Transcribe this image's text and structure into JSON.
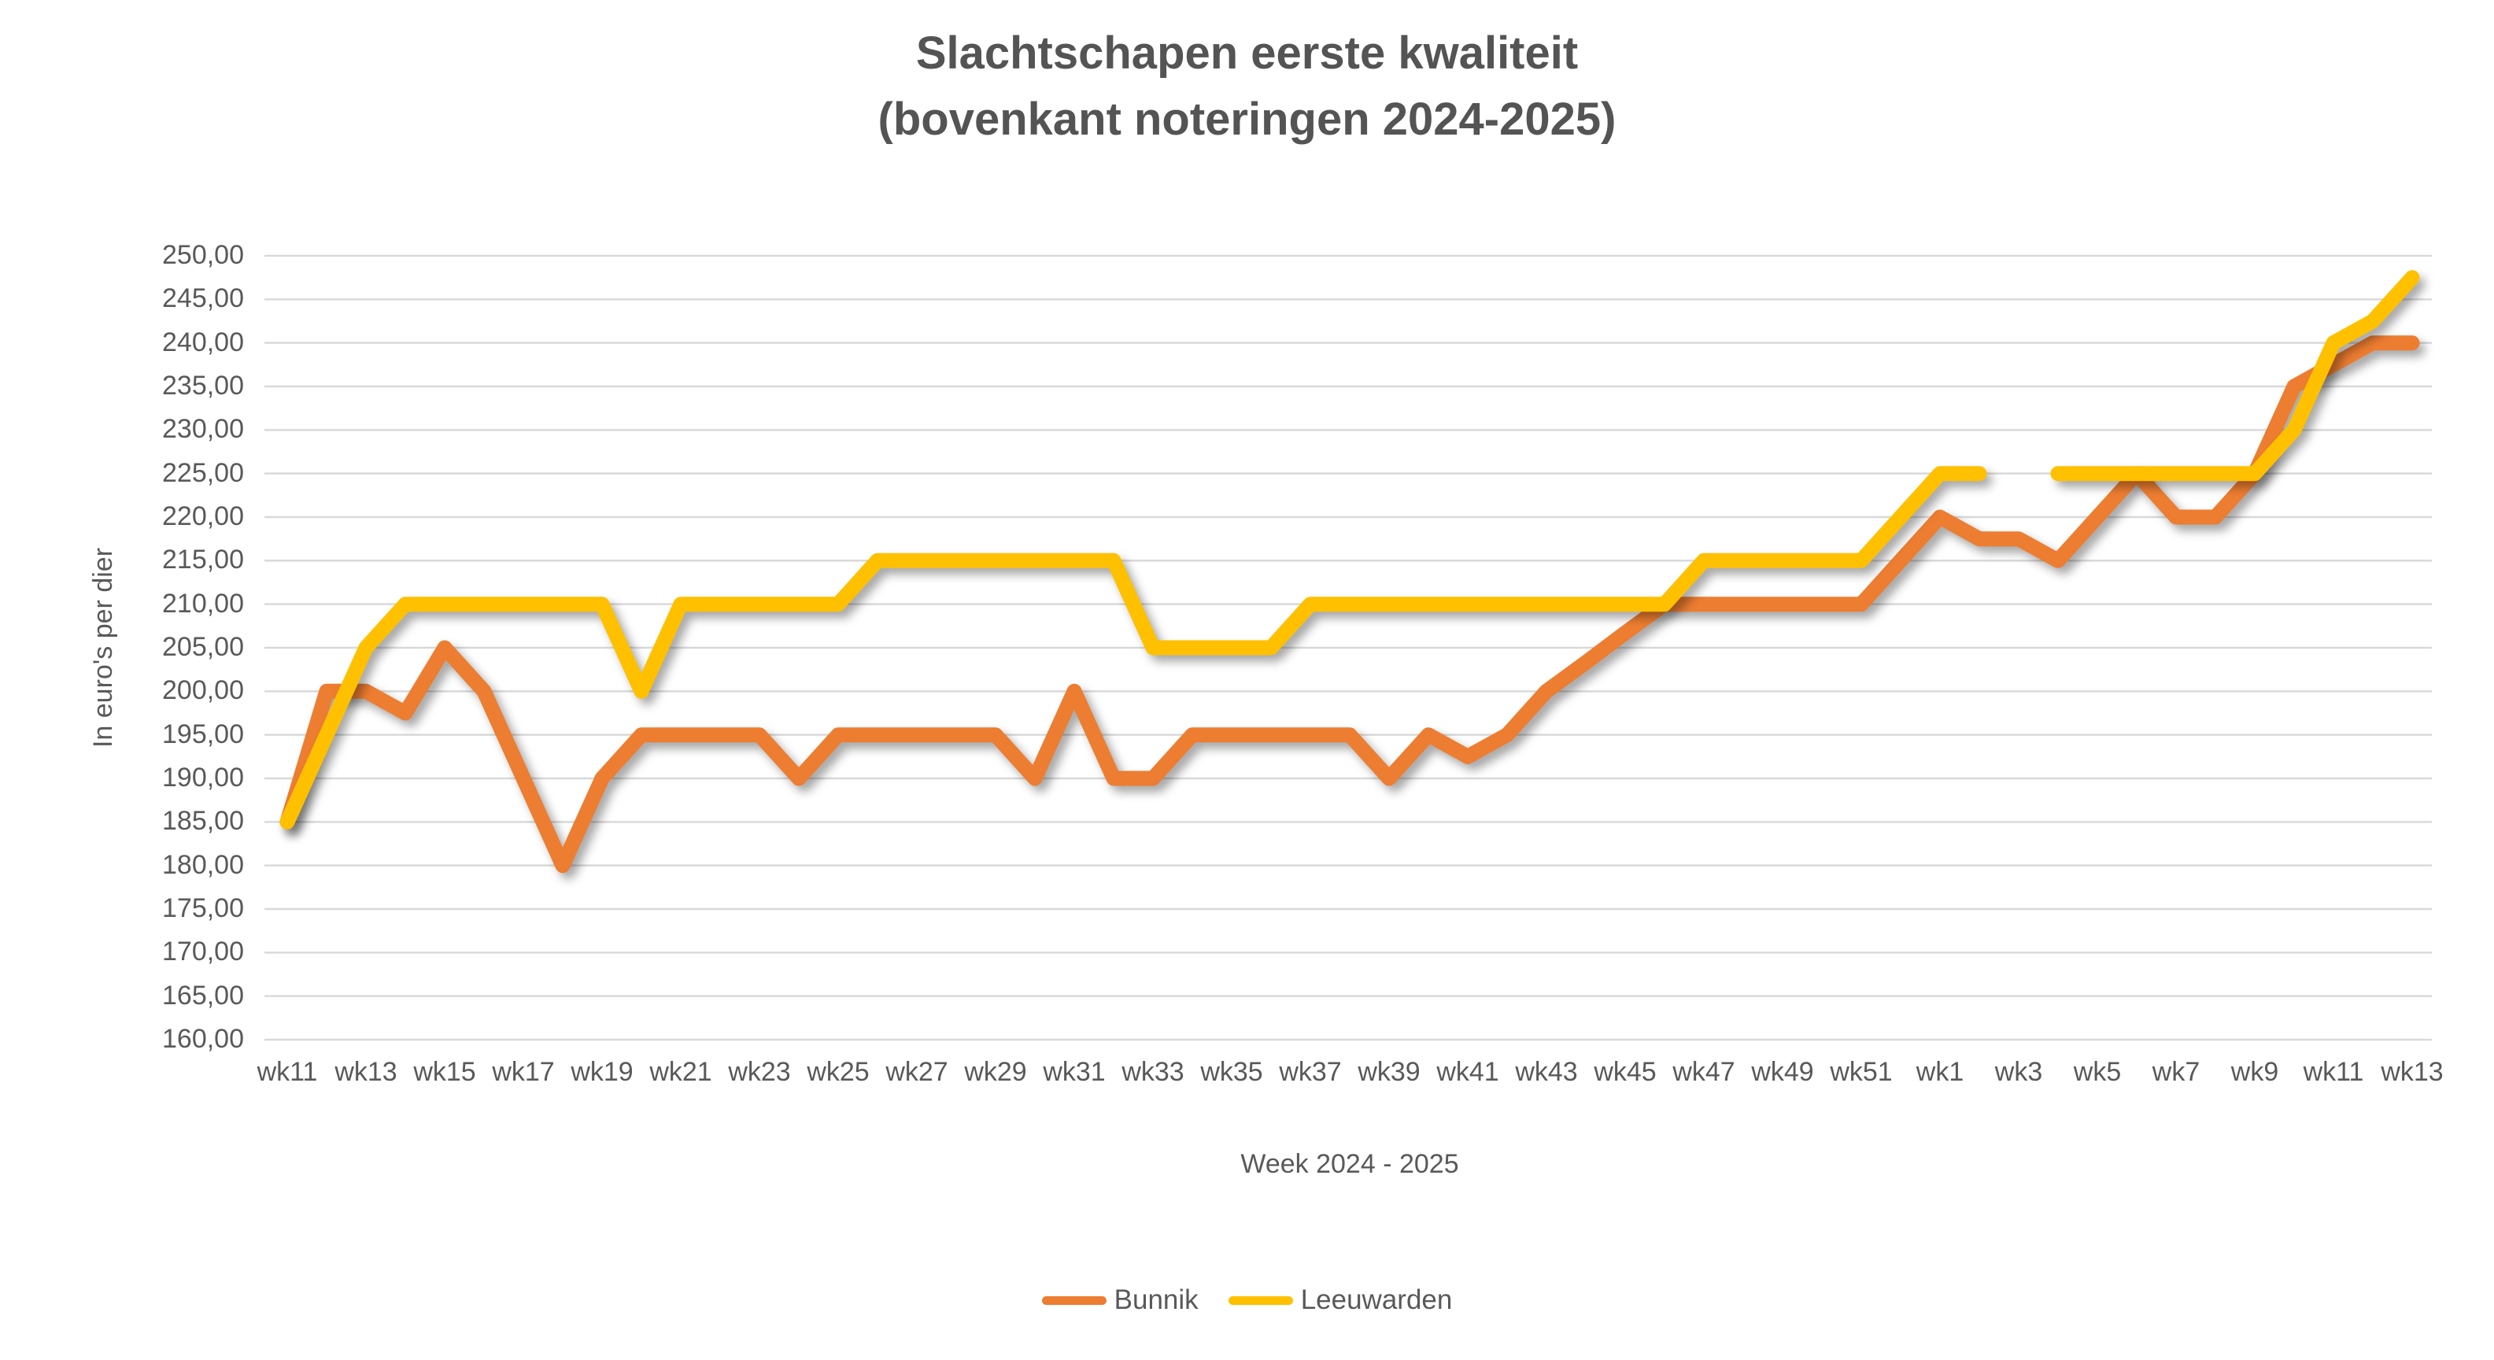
{
  "title": {
    "line1": "Slachtschapen eerste kwaliteit",
    "line2": "(bovenkant noteringen 2024-2025)"
  },
  "chart_data": {
    "type": "line",
    "title": "Slachtschapen eerste kwaliteit (bovenkant noteringen 2024-2025)",
    "xlabel": "Week 2024 - 2025",
    "ylabel": "In euro's per dier",
    "ylim": [
      160,
      250
    ],
    "y_tick_step": 5,
    "y_tick_format": "comma-decimal-2",
    "grid": true,
    "gridline_color": "#d9d9d9",
    "legend_position": "bottom",
    "x_tick_shown_every": 2,
    "categories": [
      "wk11",
      "wk12",
      "wk13",
      "wk14",
      "wk15",
      "wk16",
      "wk17",
      "wk18",
      "wk19",
      "wk20",
      "wk21",
      "wk22",
      "wk23",
      "wk24",
      "wk25",
      "wk26",
      "wk27",
      "wk28",
      "wk29",
      "wk30",
      "wk31",
      "wk32",
      "wk33",
      "wk34",
      "wk35",
      "wk36",
      "wk37",
      "wk38",
      "wk39",
      "wk40",
      "wk41",
      "wk42",
      "wk43",
      "wk44",
      "wk45",
      "wk46",
      "wk47",
      "wk48",
      "wk49",
      "wk50",
      "wk51",
      "wk52",
      "wk1",
      "wk2",
      "wk3",
      "wk4",
      "wk5",
      "wk6",
      "wk7",
      "wk8",
      "wk9",
      "wk10",
      "wk11",
      "wk12",
      "wk13"
    ],
    "series": [
      {
        "name": "Bunnik",
        "color": "#ED7D31",
        "values": [
          185,
          200,
          200,
          197.5,
          205,
          200,
          190,
          180,
          190,
          195,
          195,
          195,
          195,
          190,
          195,
          195,
          195,
          195,
          195,
          190,
          200,
          190,
          190,
          195,
          195,
          195,
          195,
          195,
          190,
          195,
          192.5,
          195,
          200,
          203.3,
          206.7,
          210,
          210,
          210,
          210,
          210,
          210,
          215,
          220,
          217.5,
          217.5,
          215,
          220,
          225,
          220,
          220,
          225,
          235,
          237.5,
          240,
          240
        ]
      },
      {
        "name": "Leeuwarden",
        "color": "#FFC000",
        "values": [
          185,
          195,
          205,
          210,
          210,
          210,
          210,
          210,
          210,
          200,
          210,
          210,
          210,
          210,
          210,
          215,
          215,
          215,
          215,
          215,
          215,
          215,
          205,
          205,
          205,
          205,
          210,
          210,
          210,
          210,
          210,
          210,
          210,
          210,
          210,
          210,
          215,
          215,
          215,
          215,
          215,
          220,
          225,
          225,
          null,
          225,
          225,
          225,
          225,
          225,
          225,
          230,
          240,
          242.5,
          247.5
        ]
      }
    ]
  }
}
